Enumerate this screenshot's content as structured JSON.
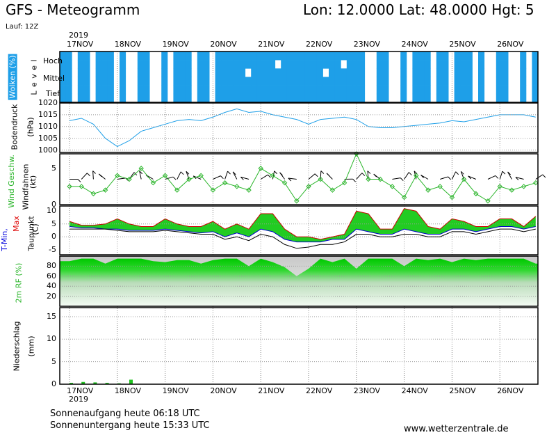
{
  "header": {
    "title": "GFS - Meteogramm",
    "location": "Lon: 12.0000  Lat: 48.0000  Hgt: 5",
    "run": "Lauf: 12Z",
    "year": "2019"
  },
  "days": [
    "17NOV",
    "18NOV",
    "19NOV",
    "20NOV",
    "21NOV",
    "22NOV",
    "23NOV",
    "24NOV",
    "25NOV",
    "26NOV"
  ],
  "panels": {
    "clouds": {
      "label": "Wolken (%)",
      "level": "L e v e l",
      "levels": [
        "Hoch",
        "Mittel",
        "Tief"
      ],
      "color": "#1e9fe8"
    },
    "pressure": {
      "label": "Bodendruck",
      "unit": "(hPa)",
      "ticks": [
        "1020",
        "1015",
        "1010",
        "1005",
        "1000"
      ],
      "color": "#1e9fe8"
    },
    "wind": {
      "label_a": "Wind Geschw.",
      "label_b": "Windfahnen",
      "unit": "(kt)",
      "ticks": [
        "5",
        "0"
      ],
      "color": "#2ab52a"
    },
    "temp": {
      "label_a": "T-Min,",
      "label_b": "Max",
      "label_c": "Taupunkt",
      "unit": "(C)",
      "ticks": [
        "10",
        "5",
        "0",
        "-5"
      ]
    },
    "rh": {
      "label": "2m RF (%)",
      "ticks": [
        "80",
        "60",
        "40",
        "20"
      ],
      "color": "#1fd21f"
    },
    "precip": {
      "label": "Niederschlag",
      "unit": "(mm)",
      "ticks": [
        "15",
        "10",
        "5",
        "0"
      ],
      "color": "#1fc21f"
    }
  },
  "footer": {
    "sunrise": "Sonnenaufgang heute 06:18 UTC",
    "sunset": "Sonnenuntergang heute 15:33 UTC",
    "website": "www.wetterzentrale.de"
  },
  "chart_data": [
    {
      "type": "area",
      "title": "Wolken (%)",
      "ylabel": "Level",
      "levels": [
        "Hoch",
        "Mittel",
        "Tief"
      ],
      "note": "cloud cover coded per 3h time step, 1 = cloudy, levels high/mid/low",
      "x_days": [
        "17NOV",
        "18NOV",
        "19NOV",
        "20NOV",
        "21NOV",
        "22NOV",
        "23NOV",
        "24NOV",
        "25NOV",
        "26NOV"
      ]
    },
    {
      "type": "line",
      "title": "Bodendruck",
      "ylabel": "(hPa)",
      "ylim": [
        999,
        1020
      ],
      "x_hours_from_17NOV00": [
        0,
        6,
        12,
        18,
        24,
        30,
        36,
        42,
        48,
        54,
        60,
        66,
        72,
        78,
        84,
        90,
        96,
        102,
        108,
        114,
        120,
        126,
        132,
        138,
        144,
        150,
        156,
        162,
        168,
        174,
        180,
        186,
        192,
        198,
        204,
        210,
        216,
        222,
        228,
        234
      ],
      "values": [
        1012.5,
        1013.5,
        1011,
        1005,
        1001.5,
        1004,
        1008,
        1009.5,
        1011,
        1012.5,
        1013,
        1012.5,
        1014,
        1016,
        1017.5,
        1016,
        1016.5,
        1015,
        1014,
        1013,
        1011,
        1013,
        1013.5,
        1014,
        1013,
        1010,
        1009.5,
        1009.5,
        1010,
        1010.5,
        1011,
        1011.5,
        1012.5,
        1012,
        1013,
        1014,
        1015,
        1015,
        1015,
        1014
      ]
    },
    {
      "type": "line",
      "title": "Wind Geschw.",
      "ylabel": "(kt)",
      "ylim": [
        0,
        7
      ],
      "x_hours_from_17NOV00": [
        0,
        6,
        12,
        18,
        24,
        30,
        36,
        42,
        48,
        54,
        60,
        66,
        72,
        78,
        84,
        90,
        96,
        102,
        108,
        114,
        120,
        126,
        132,
        138,
        144,
        150,
        156,
        162,
        168,
        174,
        180,
        186,
        192,
        198,
        204,
        210,
        216,
        222,
        228,
        234
      ],
      "values": [
        2.5,
        2.5,
        1.5,
        2,
        4,
        3.5,
        5,
        3,
        4,
        2,
        3.5,
        4,
        2,
        3,
        2.5,
        2,
        5,
        4,
        3,
        0.5,
        2.5,
        3.5,
        2,
        3,
        7,
        3.5,
        3.5,
        2.5,
        1,
        4,
        2,
        2.5,
        1,
        3.5,
        1.5,
        0.5,
        2.5,
        2,
        2.5,
        3
      ]
    },
    {
      "type": "area",
      "title": "T-Min, Max / Taupunkt",
      "ylabel": "(C)",
      "ylim": [
        -7,
        12
      ],
      "x_hours_from_17NOV00": [
        0,
        6,
        12,
        18,
        24,
        30,
        36,
        42,
        48,
        54,
        60,
        66,
        72,
        78,
        84,
        90,
        96,
        102,
        108,
        114,
        120,
        126,
        132,
        138,
        144,
        150,
        156,
        162,
        168,
        174,
        180,
        186,
        192,
        198,
        204,
        210,
        216,
        222,
        228,
        234
      ],
      "series": [
        {
          "name": "Max",
          "values": [
            6,
            4.5,
            4.5,
            5,
            7,
            5,
            4,
            4,
            7,
            5,
            4,
            4,
            6,
            3,
            5,
            3,
            9,
            9,
            3,
            0,
            0,
            -1,
            0,
            1,
            10,
            9,
            3,
            3,
            11,
            10,
            4,
            3,
            7,
            6,
            4,
            4,
            7,
            7,
            4,
            8
          ]
        },
        {
          "name": "T-Min",
          "values": [
            4,
            3.5,
            3.5,
            3,
            3,
            2.5,
            2.5,
            2.5,
            3,
            2.5,
            2,
            1.5,
            2,
            0,
            1.5,
            0,
            3,
            2,
            -1,
            -2,
            -2,
            -2,
            -1,
            -1,
            3,
            2,
            1,
            1,
            3,
            2,
            1,
            1,
            3,
            3,
            2,
            3,
            4,
            4,
            3,
            4
          ]
        },
        {
          "name": "Taupunkt",
          "values": [
            3,
            3,
            3,
            3,
            2.5,
            2,
            2,
            2,
            2.5,
            2,
            1.5,
            1,
            1,
            -1,
            0,
            -1.5,
            1,
            0,
            -3,
            -4.5,
            -4,
            -3,
            -3,
            -2,
            1,
            1,
            0,
            0,
            1,
            1,
            0,
            0,
            2,
            2,
            1,
            2,
            3,
            3,
            2,
            3
          ]
        }
      ]
    },
    {
      "type": "area",
      "title": "2m RF (%)",
      "ylim": [
        0,
        100
      ],
      "x_hours_from_17NOV00": [
        0,
        6,
        12,
        18,
        24,
        30,
        36,
        42,
        48,
        54,
        60,
        66,
        72,
        78,
        84,
        90,
        96,
        102,
        108,
        114,
        120,
        126,
        132,
        138,
        144,
        150,
        156,
        162,
        168,
        174,
        180,
        186,
        192,
        198,
        204,
        210,
        216,
        222,
        228,
        234
      ],
      "values": [
        90,
        95,
        95,
        85,
        95,
        95,
        95,
        90,
        88,
        92,
        92,
        85,
        92,
        95,
        95,
        80,
        95,
        88,
        78,
        60,
        75,
        95,
        88,
        95,
        75,
        95,
        95,
        95,
        80,
        95,
        92,
        95,
        88,
        95,
        92,
        95,
        95,
        95,
        95,
        85
      ]
    },
    {
      "type": "bar",
      "title": "Niederschlag",
      "ylabel": "(mm)",
      "ylim": [
        0,
        17
      ],
      "x_hours_from_17NOV00": [
        0,
        6,
        12,
        18,
        24,
        30
      ],
      "values": [
        0.3,
        0.5,
        0.4,
        0.3,
        0.2,
        1.0
      ]
    }
  ]
}
